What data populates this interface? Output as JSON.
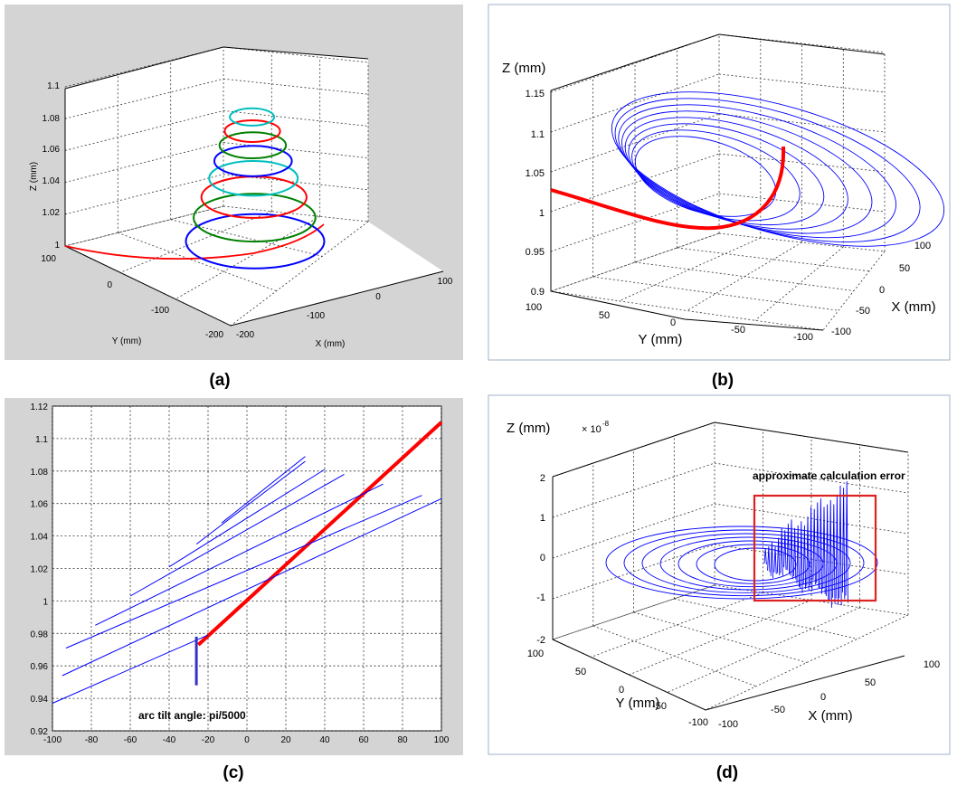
{
  "figure": {
    "panels": [
      {
        "caption": "(a)",
        "chart_data": {
          "type": "line",
          "projection": "3d",
          "xlabel": "X (mm)",
          "ylabel": "Y (mm)",
          "zlabel": "Z (mm)",
          "xticks": [
            "-200",
            "-100",
            "0",
            "100"
          ],
          "yticks": [
            "100",
            "0",
            "-100",
            "-200"
          ],
          "zticks": [
            "1",
            "1.02",
            "1.04",
            "1.06",
            "1.08",
            "1.1"
          ],
          "xlim": [
            -200,
            100
          ],
          "ylim": [
            -200,
            100
          ],
          "zlim": [
            1,
            1.1
          ],
          "grid": true,
          "series": [
            {
              "color": "#ff0000",
              "kind": "lead-in",
              "description": "curve from (100,100,1) into spiral"
            },
            {
              "color": "#0000ff",
              "ring_z": 1.003,
              "ring_radius": 100
            },
            {
              "color": "#008000",
              "ring_z": 1.018,
              "ring_radius": 88
            },
            {
              "color": "#ff0000",
              "ring_z": 1.031,
              "ring_radius": 76
            },
            {
              "color": "#00bfbf",
              "ring_z": 1.043,
              "ring_radius": 64
            },
            {
              "color": "#0000ff",
              "ring_z": 1.054,
              "ring_radius": 56
            },
            {
              "color": "#008000",
              "ring_z": 1.064,
              "ring_radius": 48
            },
            {
              "color": "#ff0000",
              "ring_z": 1.073,
              "ring_radius": 40
            },
            {
              "color": "#00bfbf",
              "ring_z": 1.082,
              "ring_radius": 32
            }
          ]
        }
      },
      {
        "caption": "(b)",
        "chart_data": {
          "type": "line",
          "projection": "3d",
          "xlabel": "X (mm)",
          "ylabel": "Y (mm)",
          "zlabel": "Z (mm)",
          "xticks": [
            "100",
            "50",
            "0",
            "-50",
            "-100"
          ],
          "yticks": [
            "100",
            "50",
            "0",
            "-50",
            "-100"
          ],
          "zticks": [
            "0.9",
            "0.95",
            "1",
            "1.05",
            "1.1",
            "1.15"
          ],
          "xlim": [
            -100,
            100
          ],
          "ylim": [
            -100,
            100
          ],
          "zlim": [
            0.9,
            1.15
          ],
          "grid": true,
          "series": [
            {
              "color": "#0000ff",
              "kind": "tilted-spiral",
              "turns": 8
            },
            {
              "color": "#ff0000",
              "kind": "lead-in",
              "width": "thick"
            }
          ]
        }
      },
      {
        "caption": "(c)",
        "chart_data": {
          "type": "line",
          "xlim": [
            -100,
            100
          ],
          "ylim": [
            0.92,
            1.12
          ],
          "xticks": [
            "-100",
            "-80",
            "-60",
            "-40",
            "-20",
            "0",
            "20",
            "40",
            "60",
            "80",
            "100"
          ],
          "yticks": [
            "0.92",
            "0.94",
            "0.96",
            "0.98",
            "1",
            "1.02",
            "1.04",
            "1.06",
            "1.08",
            "1.1",
            "1.12"
          ],
          "grid": true,
          "series": [
            {
              "color": "#ff0000",
              "points": [
                [
                  -25,
                  0.973
                ],
                [
                  100,
                  1.11
                ]
              ]
            },
            {
              "color": "#0000ff",
              "points": [
                [
                  -100,
                  0.937
                ],
                [
                  -20,
                  0.979
                ]
              ]
            },
            {
              "color": "#0000ff",
              "points": [
                [
                  -95,
                  0.954
                ],
                [
                  100,
                  1.063
                ]
              ]
            },
            {
              "color": "#0000ff",
              "points": [
                [
                  -93,
                  0.971
                ],
                [
                  90,
                  1.065
                ]
              ]
            },
            {
              "color": "#0000ff",
              "points": [
                [
                  -78,
                  0.985
                ],
                [
                  70,
                  1.072
                ]
              ]
            },
            {
              "color": "#0000ff",
              "points": [
                [
                  -60,
                  1.003
                ],
                [
                  50,
                  1.078
                ]
              ]
            },
            {
              "color": "#0000ff",
              "points": [
                [
                  -40,
                  1.021
                ],
                [
                  40,
                  1.081
                ]
              ]
            },
            {
              "color": "#0000ff",
              "points": [
                [
                  -26,
                  1.035
                ],
                [
                  30,
                  1.086
                ]
              ]
            },
            {
              "color": "#0000ff",
              "points": [
                [
                  -13,
                  1.048
                ],
                [
                  30,
                  1.089
                ]
              ]
            },
            {
              "color": "#3333cc",
              "points": [
                [
                  -26,
                  0.948
                ],
                [
                  -26,
                  0.978
                ]
              ],
              "width": "thick"
            }
          ],
          "annotation": "arc tilt angle: pi/5000"
        }
      },
      {
        "caption": "(d)",
        "chart_data": {
          "type": "line",
          "projection": "3d",
          "xlabel": "X (mm)",
          "ylabel": "Y (mm)",
          "zlabel": "Z (mm)",
          "z_exponent_base": "× 10",
          "z_exponent": "-8",
          "xticks": [
            "100",
            "50",
            "0",
            "-50",
            "-100"
          ],
          "yticks": [
            "100",
            "50",
            "0",
            "-50",
            "-100"
          ],
          "zticks": [
            "-2",
            "-1",
            "0",
            "1",
            "2"
          ],
          "xlim": [
            -100,
            100
          ],
          "ylim": [
            -100,
            100
          ],
          "zlim": [
            -2,
            2
          ],
          "grid": true,
          "series": [
            {
              "color": "#0000ff",
              "kind": "error-spiral"
            }
          ],
          "highlight_box_color": "#dd2222",
          "annotation": "approximate calculation error"
        }
      }
    ]
  }
}
